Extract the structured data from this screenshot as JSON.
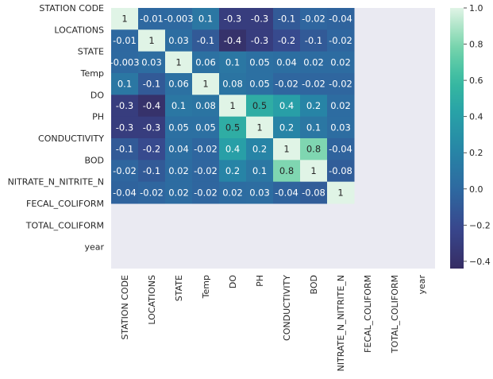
{
  "chart_data": {
    "type": "heatmap",
    "title": "",
    "xlabel": "",
    "ylabel": "",
    "labels": [
      "STATION CODE",
      "LOCATIONS",
      "STATE",
      "Temp",
      "DO",
      "PH",
      "CONDUCTIVITY",
      "BOD",
      "NITRATE_N_NITRITE_N",
      "FECAL_COLIFORM",
      "TOTAL_COLIFORM",
      "year"
    ],
    "matrix": [
      [
        1,
        -0.01,
        -0.003,
        0.1,
        -0.3,
        -0.3,
        -0.1,
        -0.02,
        -0.04,
        null,
        null,
        null
      ],
      [
        -0.01,
        1,
        0.03,
        -0.1,
        -0.4,
        -0.3,
        -0.2,
        -0.1,
        -0.02,
        null,
        null,
        null
      ],
      [
        -0.003,
        0.03,
        1,
        0.06,
        0.1,
        0.05,
        0.04,
        0.02,
        0.02,
        null,
        null,
        null
      ],
      [
        0.1,
        -0.1,
        0.06,
        1,
        0.08,
        0.05,
        -0.02,
        -0.02,
        -0.02,
        null,
        null,
        null
      ],
      [
        -0.3,
        -0.4,
        0.1,
        0.08,
        1,
        0.5,
        0.4,
        0.2,
        0.02,
        null,
        null,
        null
      ],
      [
        -0.3,
        -0.3,
        0.05,
        0.05,
        0.5,
        1,
        0.2,
        0.1,
        0.03,
        null,
        null,
        null
      ],
      [
        -0.1,
        -0.2,
        0.04,
        -0.02,
        0.4,
        0.2,
        1,
        0.8,
        -0.04,
        null,
        null,
        null
      ],
      [
        -0.02,
        -0.1,
        0.02,
        -0.02,
        0.2,
        0.1,
        0.8,
        1,
        -0.08,
        null,
        null,
        null
      ],
      [
        -0.04,
        -0.02,
        0.02,
        -0.02,
        0.02,
        0.03,
        -0.04,
        -0.08,
        1,
        null,
        null,
        null
      ],
      [
        null,
        null,
        null,
        null,
        null,
        null,
        null,
        null,
        null,
        null,
        null,
        null
      ],
      [
        null,
        null,
        null,
        null,
        null,
        null,
        null,
        null,
        null,
        null,
        null,
        null
      ],
      [
        null,
        null,
        null,
        null,
        null,
        null,
        null,
        null,
        null,
        null,
        null,
        null
      ]
    ],
    "colorbar": {
      "colormap": "mako-like (dark indigo to mint)",
      "vmin": -0.44,
      "vmax": 1.0,
      "ticks": [
        1.0,
        0.8,
        0.6,
        0.4,
        0.2,
        0.0,
        -0.2,
        -0.4
      ],
      "tick_labels": [
        "1.0",
        "0.8",
        "0.6",
        "0.4",
        "0.2",
        "0.0",
        "−0.2",
        "−0.4"
      ]
    },
    "missing_color": "#eaeaf2",
    "annotate": true
  }
}
